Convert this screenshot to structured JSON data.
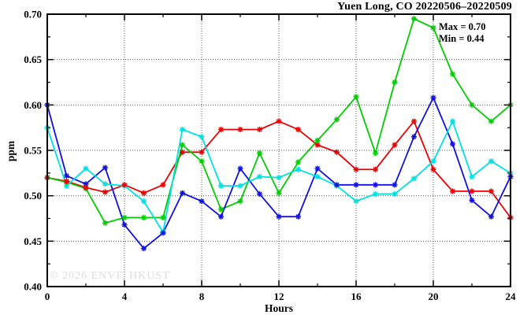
{
  "chart_data": {
    "type": "line",
    "title": "Yuen Long, CO 20220506–20220509",
    "xlabel": "Hours",
    "ylabel": "ppm",
    "xlim": [
      0,
      24
    ],
    "ylim": [
      0.4,
      0.7
    ],
    "xticks": {
      "major": [
        0,
        4,
        8,
        12,
        16,
        20,
        24
      ],
      "labels": [
        "0",
        "4",
        "8",
        "12",
        "16",
        "20",
        "24"
      ],
      "minor": [
        2,
        6,
        10,
        14,
        18,
        22
      ]
    },
    "yticks": {
      "major": [
        0.4,
        0.45,
        0.5,
        0.55,
        0.6,
        0.65,
        0.7
      ],
      "labels": [
        "0.40",
        "0.45",
        "0.50",
        "0.55",
        "0.60",
        "0.65",
        "0.70"
      ],
      "minor": [
        0.425,
        0.475,
        0.525,
        0.575,
        0.625,
        0.675
      ]
    },
    "grid": {
      "x_at": [
        4,
        8,
        12,
        16,
        20
      ],
      "y_at": [
        0.45,
        0.5,
        0.55,
        0.6,
        0.65
      ]
    },
    "legend_position": "none",
    "annotations": [
      {
        "text": "Max = 0.70"
      },
      {
        "text": "Min = 0.44"
      }
    ],
    "watermark": "© 2026 ENVF, HKUST",
    "x": [
      0,
      1,
      2,
      3,
      4,
      5,
      6,
      7,
      8,
      9,
      10,
      11,
      12,
      13,
      14,
      15,
      16,
      17,
      18,
      19,
      20,
      21,
      22,
      23,
      24
    ],
    "series": [
      {
        "name": "red",
        "color": "#e80000",
        "values": [
          0.52,
          0.516,
          0.509,
          0.504,
          0.512,
          0.503,
          0.512,
          0.548,
          0.548,
          0.573,
          0.573,
          0.573,
          0.582,
          0.573,
          0.556,
          0.548,
          0.529,
          0.529,
          0.556,
          0.582,
          0.529,
          0.505,
          0.505,
          0.505,
          0.476
        ]
      },
      {
        "name": "green",
        "color": "#00cc00",
        "values": [
          0.52,
          0.515,
          0.508,
          0.47,
          0.476,
          0.476,
          0.476,
          0.556,
          0.538,
          0.485,
          0.494,
          0.547,
          0.503,
          0.537,
          0.561,
          0.584,
          0.609,
          0.547,
          0.625,
          0.695,
          0.685,
          0.634,
          0.6,
          0.582,
          0.6
        ]
      },
      {
        "name": "blue",
        "color": "#1010e0",
        "values": [
          0.6,
          0.522,
          0.513,
          0.531,
          0.468,
          0.442,
          0.459,
          0.503,
          0.494,
          0.477,
          0.53,
          0.502,
          0.477,
          0.477,
          0.53,
          0.512,
          0.512,
          0.512,
          0.512,
          0.565,
          0.608,
          0.557,
          0.495,
          0.477,
          0.521
        ]
      },
      {
        "name": "cyan",
        "color": "#00e0e0",
        "values": [
          0.575,
          0.511,
          0.53,
          0.513,
          0.511,
          0.494,
          0.46,
          0.573,
          0.565,
          0.511,
          0.511,
          0.521,
          0.52,
          0.529,
          0.521,
          0.511,
          0.494,
          0.502,
          0.502,
          0.519,
          0.538,
          0.582,
          0.521,
          0.538,
          0.525
        ]
      }
    ],
    "max_value": "0.70",
    "min_value": "0.44"
  },
  "style_colors": {
    "grid": "#555555",
    "axis": "#000000",
    "watermark_text": "#dcdcdc"
  }
}
